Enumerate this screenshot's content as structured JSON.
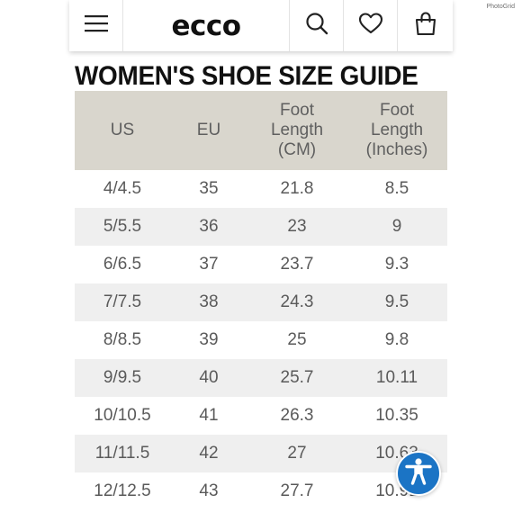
{
  "watermark": "PhotoGrid",
  "header": {
    "logo": "ecco",
    "icons": [
      "hamburger-menu-icon",
      "search-icon",
      "heart-icon",
      "shopping-bag-icon"
    ]
  },
  "title": "WOMEN'S SHOE SIZE GUIDE",
  "table": {
    "headers": [
      "US",
      "EU",
      "Foot\nLength\n(CM)",
      "Foot\nLength\n(Inches)"
    ],
    "rows": [
      [
        "4/4.5",
        "35",
        "21.8",
        "8.5"
      ],
      [
        "5/5.5",
        "36",
        "23",
        "9"
      ],
      [
        "6/6.5",
        "37",
        "23.7",
        "9.3"
      ],
      [
        "7/7.5",
        "38",
        "24.3",
        "9.5"
      ],
      [
        "8/8.5",
        "39",
        "25",
        "9.8"
      ],
      [
        "9/9.5",
        "40",
        "25.7",
        "10.11"
      ],
      [
        "10/10.5",
        "41",
        "26.3",
        "10.35"
      ],
      [
        "11/11.5",
        "42",
        "27",
        "10.63"
      ],
      [
        "12/12.5",
        "43",
        "27.7",
        "10.91"
      ]
    ]
  },
  "colors": {
    "header_row_bg": "#d9d6cd",
    "alt_row_bg": "#efefef",
    "accessibility_button": "#1b74c5"
  },
  "accessibility_icon": "accessibility-person-icon"
}
